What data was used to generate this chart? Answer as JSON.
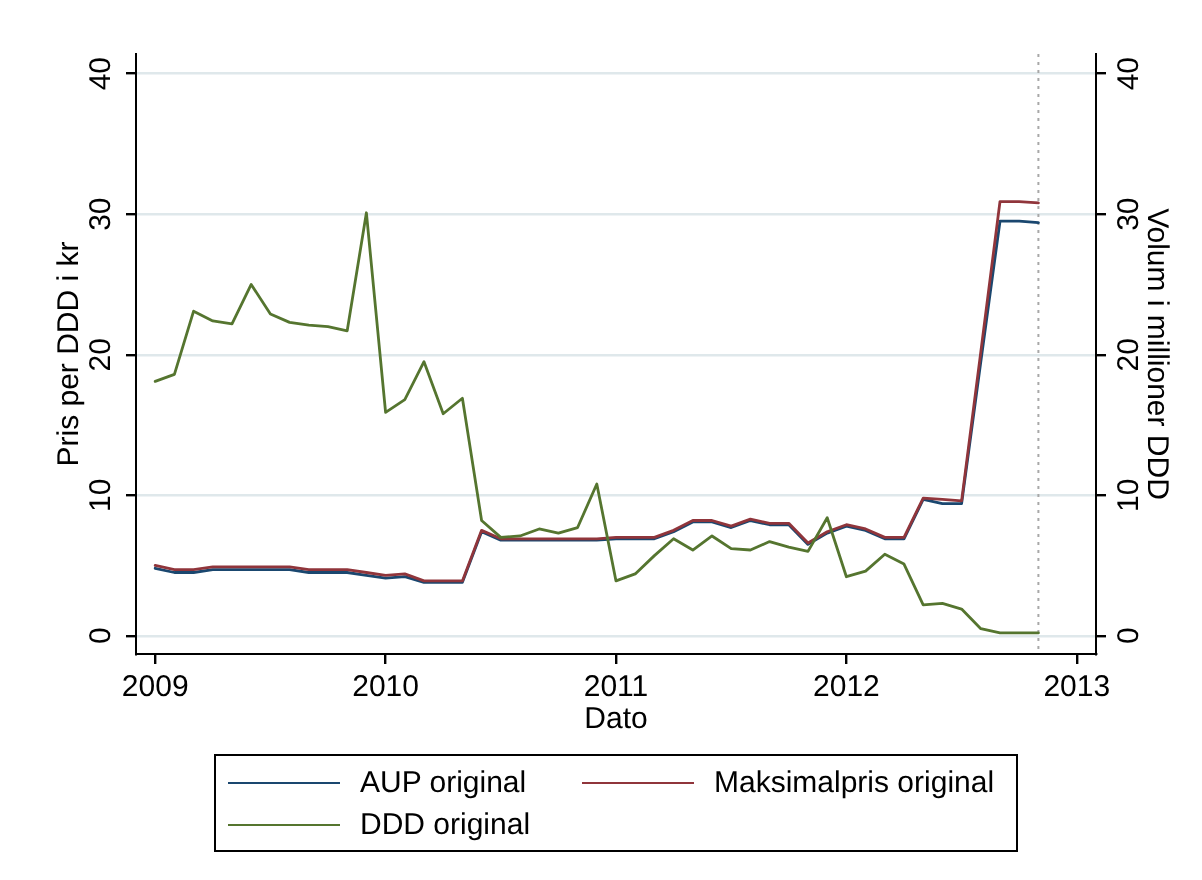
{
  "chart_data": {
    "type": "line",
    "xlabel": "Dato",
    "ylabel": "Pris per DDD i kr",
    "y2label": "Volum i millioner DDD",
    "x": [
      "2009-01",
      "2009-02",
      "2009-03",
      "2009-04",
      "2009-05",
      "2009-06",
      "2009-07",
      "2009-08",
      "2009-09",
      "2009-10",
      "2009-11",
      "2009-12",
      "2010-01",
      "2010-02",
      "2010-03",
      "2010-04",
      "2010-05",
      "2010-06",
      "2010-07",
      "2010-08",
      "2010-09",
      "2010-10",
      "2010-11",
      "2010-12",
      "2011-01",
      "2011-02",
      "2011-03",
      "2011-04",
      "2011-05",
      "2011-06",
      "2011-07",
      "2011-08",
      "2011-09",
      "2011-10",
      "2011-11",
      "2011-12",
      "2012-01",
      "2012-02",
      "2012-03",
      "2012-04",
      "2012-05",
      "2012-06",
      "2012-07",
      "2012-08",
      "2012-09",
      "2012-10",
      "2012-11"
    ],
    "series": [
      {
        "name": "AUP original",
        "color": "#1a476f",
        "values": [
          4.8,
          4.5,
          4.5,
          4.7,
          4.7,
          4.7,
          4.7,
          4.7,
          4.5,
          4.5,
          4.5,
          4.3,
          4.1,
          4.2,
          3.8,
          3.8,
          3.8,
          7.4,
          6.8,
          6.8,
          6.8,
          6.8,
          6.8,
          6.8,
          6.9,
          6.9,
          6.9,
          7.4,
          8.1,
          8.1,
          7.7,
          8.2,
          7.9,
          7.9,
          6.5,
          7.3,
          7.8,
          7.5,
          6.9,
          6.9,
          9.7,
          9.4,
          9.4,
          19.5,
          29.5,
          29.5,
          29.4
        ]
      },
      {
        "name": "Maksimalpris original",
        "color": "#90353b",
        "values": [
          5.0,
          4.7,
          4.7,
          4.9,
          4.9,
          4.9,
          4.9,
          4.9,
          4.7,
          4.7,
          4.7,
          4.5,
          4.3,
          4.4,
          3.9,
          3.9,
          3.9,
          7.5,
          6.9,
          6.9,
          6.9,
          6.9,
          6.9,
          6.9,
          7.0,
          7.0,
          7.0,
          7.5,
          8.2,
          8.2,
          7.8,
          8.3,
          8.0,
          8.0,
          6.6,
          7.4,
          7.9,
          7.6,
          7.0,
          7.0,
          9.8,
          9.7,
          9.6,
          20.2,
          30.9,
          30.9,
          30.8
        ]
      },
      {
        "name": "DDD original",
        "color": "#55752f",
        "axis": "y2",
        "values": [
          18.1,
          18.6,
          23.1,
          22.4,
          22.2,
          25.0,
          22.9,
          22.3,
          22.1,
          22.0,
          21.7,
          30.1,
          15.9,
          16.8,
          19.5,
          15.8,
          16.9,
          8.2,
          7.0,
          7.1,
          7.6,
          7.3,
          7.7,
          10.8,
          3.9,
          4.4,
          5.7,
          6.9,
          6.1,
          7.1,
          6.2,
          6.1,
          6.7,
          6.3,
          6.0,
          8.4,
          4.2,
          4.6,
          5.8,
          5.1,
          2.2,
          2.3,
          1.9,
          0.5,
          0.2,
          0.2,
          0.2
        ]
      }
    ],
    "xlim": [
      "2008-12",
      "2013-02"
    ],
    "xticks": [
      "2009",
      "2010",
      "2011",
      "2012",
      "2013"
    ],
    "ylim": [
      -1.3,
      41.4
    ],
    "yticks": [
      0,
      10,
      20,
      30,
      40
    ],
    "y2lim": [
      -1.3,
      41.4
    ],
    "y2ticks": [
      0,
      10,
      20,
      30,
      40
    ],
    "grid": "y",
    "legend": "bottom",
    "ref_lines": [
      {
        "axis": "x",
        "value": "2012-11",
        "color": "#a8a8a8",
        "line_style": "dotted"
      }
    ]
  }
}
